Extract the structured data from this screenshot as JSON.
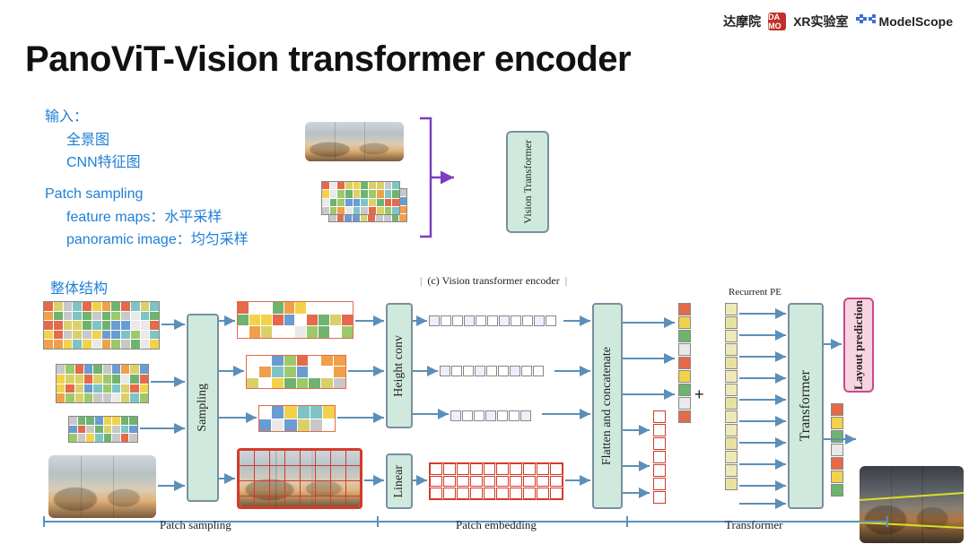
{
  "header": {
    "damo_cn": "达摩院",
    "damo_badge": "DA MO",
    "xr_lab": "XR实验室",
    "modelscope": "ModelScope"
  },
  "title": "PanoViT-Vision transformer encoder",
  "sections": {
    "input_label": "输入：",
    "input_items": [
      "全景图",
      "CNN特征图"
    ],
    "ps_label": "Patch sampling",
    "ps_items": [
      "feature maps：水平采样",
      "panoramic image：均匀采样"
    ],
    "structure_label": "整体结构"
  },
  "mini": {
    "vt_label": "Vision Transformer"
  },
  "arch": {
    "caption": "(c) Vision transformer encoder",
    "recurrent_pe": "Recurrent PE",
    "modules": {
      "sampling": "Sampling",
      "height_conv": "Height conv",
      "linear": "Linear",
      "flatten": "Flatten and concatenate",
      "transformer": "Transformer",
      "layout": "Layout prediction"
    },
    "stages": {
      "patch_sampling": "Patch sampling",
      "patch_embedding": "Patch embedding",
      "transformer": "Transformer"
    }
  },
  "palette": {
    "cells": [
      "#f2d24a",
      "#e46a4a",
      "#6fb36f",
      "#6a9bd1",
      "#c8c8c8",
      "#e9e9e9",
      "#f0a04a",
      "#9cc96a",
      "#d9d06a",
      "#7ec4c4"
    ],
    "tokens_a": "#e46a4a",
    "tokens_b": "#f2d24a",
    "tokens_c": "#6fb36f",
    "tokens_red": "#d43b2a",
    "module_fill": "#cfeadd",
    "module_border": "#7a8ea0",
    "layout_fill": "#f6d4e0",
    "layout_border": "#c74a8a",
    "arrow": "#5b8fb9",
    "arrow2": "#7a3fbf",
    "blue_text": "#1e7fd6"
  }
}
